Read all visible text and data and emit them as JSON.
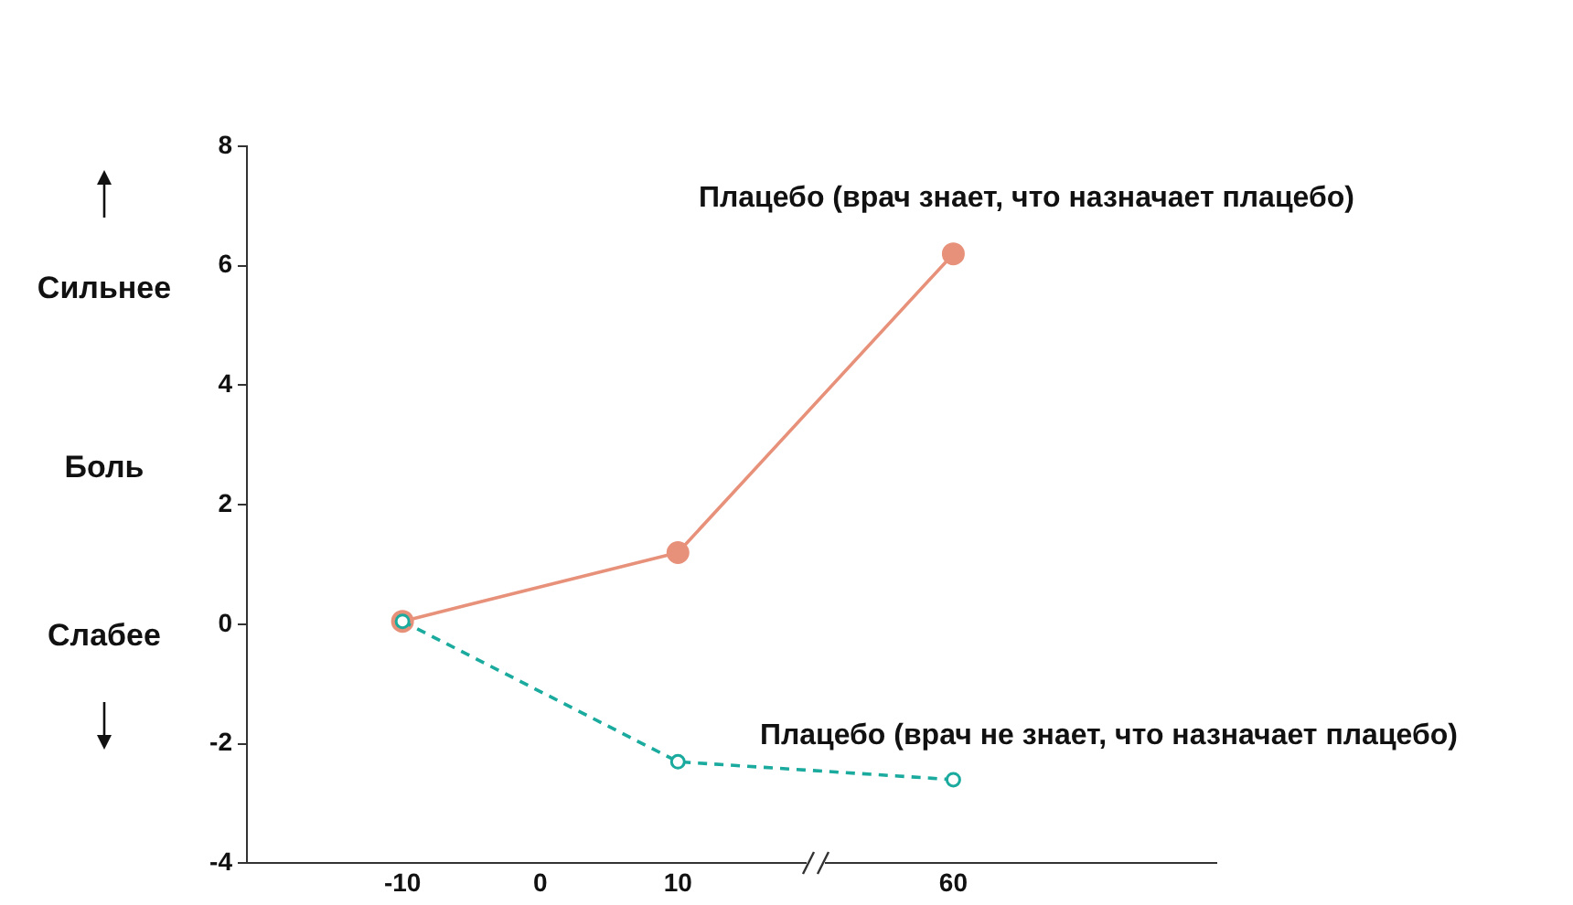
{
  "chart_data": {
    "type": "line",
    "ylabel": "Боль",
    "annotations": [
      "Сильнее",
      "Слабее"
    ],
    "categories": [
      "-10",
      "0",
      "10",
      null,
      "60"
    ],
    "series": [
      {
        "name": "Плацебо (врач не знает, что назначает плацебо)",
        "color": "#1aab9e",
        "values": [
          0.05,
          null,
          -2.3,
          null,
          -2.6
        ],
        "line_style": "dashed"
      },
      {
        "name": "Плацебо (врач знает, что назначает плацебо)",
        "color": "#e8917a",
        "values": [
          0.05,
          null,
          1.2,
          null,
          6.2
        ],
        "line_style": "solid"
      }
    ],
    "ylim": [
      -4,
      8
    ],
    "yticks": [
      -4,
      -2,
      0,
      2,
      4,
      6,
      8
    ],
    "grid": false,
    "legend": false,
    "marker": "circle"
  }
}
